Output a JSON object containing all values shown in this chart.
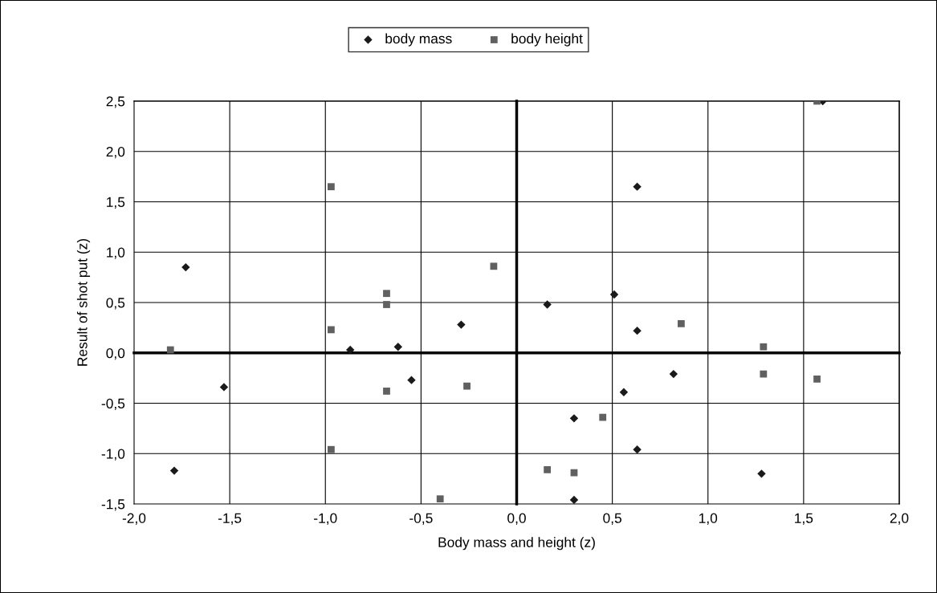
{
  "chart_data": {
    "type": "scatter",
    "xlabel": "Body mass and height (z)",
    "ylabel": "Result of shot put (z)",
    "series": [
      {
        "name": "body mass",
        "color": "#1a1a1a",
        "marker": "diamond",
        "x": [
          -1.73,
          -1.79,
          -1.53,
          -0.87,
          -0.55,
          -0.62,
          -0.29,
          0.16,
          0.51,
          0.63,
          0.63,
          0.56,
          0.3,
          0.63,
          0.3,
          0.82,
          1.28,
          1.6
        ],
        "values": [
          0.85,
          -1.17,
          -0.34,
          0.03,
          -0.27,
          0.06,
          0.28,
          0.48,
          0.58,
          1.65,
          0.22,
          -0.39,
          -0.65,
          -0.96,
          -1.46,
          -0.21,
          -1.2,
          2.5
        ]
      },
      {
        "name": "body height",
        "color": "#606060",
        "marker": "square",
        "x": [
          -1.81,
          -0.97,
          -0.97,
          -0.97,
          -0.68,
          -0.68,
          -0.68,
          -0.26,
          -0.12,
          -0.4,
          0.16,
          0.3,
          0.45,
          0.86,
          1.29,
          1.29,
          1.57,
          1.57
        ],
        "values": [
          0.03,
          1.65,
          0.23,
          -0.96,
          0.59,
          0.48,
          -0.38,
          -0.33,
          0.86,
          -1.45,
          -1.16,
          -1.19,
          -0.64,
          0.29,
          0.06,
          -0.21,
          -0.26,
          2.5
        ]
      }
    ],
    "xlim": [
      -2.0,
      2.0
    ],
    "xticks": [
      {
        "value": -2.0,
        "label": "-2,0"
      },
      {
        "value": -1.5,
        "label": "-1,5"
      },
      {
        "value": -1.0,
        "label": "-1,0"
      },
      {
        "value": -0.5,
        "label": "-0,5"
      },
      {
        "value": 0.0,
        "label": "0,0"
      },
      {
        "value": 0.5,
        "label": "0,5"
      },
      {
        "value": 1.0,
        "label": "1,0"
      },
      {
        "value": 1.5,
        "label": "1,5"
      },
      {
        "value": 2.0,
        "label": "2,0"
      }
    ],
    "ylim": [
      -1.5,
      2.5
    ],
    "yticks": [
      {
        "value": -1.5,
        "label": "-1,5"
      },
      {
        "value": -1.0,
        "label": "-1,0"
      },
      {
        "value": -0.5,
        "label": "-0,5"
      },
      {
        "value": 0.0,
        "label": "0,0"
      },
      {
        "value": 0.5,
        "label": "0,5"
      },
      {
        "value": 1.0,
        "label": "1,0"
      },
      {
        "value": 1.5,
        "label": "1,5"
      },
      {
        "value": 2.0,
        "label": "2,0"
      },
      {
        "value": 2.5,
        "label": "2,5"
      }
    ],
    "grid": true,
    "legend": "top"
  }
}
